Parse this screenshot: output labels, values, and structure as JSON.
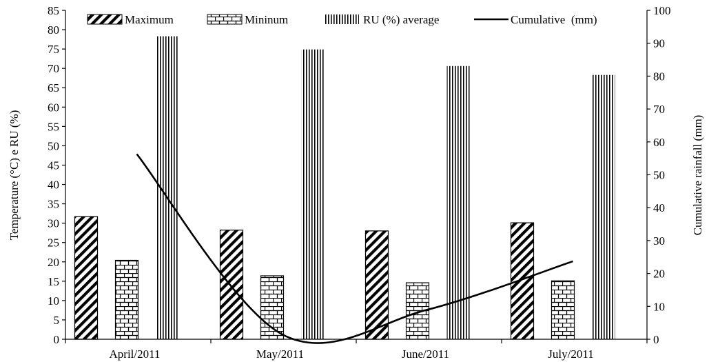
{
  "chart_data": {
    "type": "bar",
    "categories": [
      "April/2011",
      "May/2011",
      "June/2011",
      "July/2011"
    ],
    "series": [
      {
        "name": "Maximum",
        "type": "bar",
        "axis": "left",
        "pattern": "diagonal",
        "values": [
          31.7,
          28.2,
          28.0,
          30.1
        ]
      },
      {
        "name": "Mininum",
        "type": "bar",
        "axis": "left",
        "pattern": "brick",
        "values": [
          20.4,
          16.4,
          14.6,
          15.1
        ]
      },
      {
        "name": "RU (%) average",
        "type": "bar",
        "axis": "left",
        "pattern": "vertical-lines",
        "values": [
          78.3,
          74.9,
          70.6,
          68.3
        ]
      },
      {
        "name": "Cumulative  (mm)",
        "type": "line",
        "axis": "right",
        "values": [
          56.3,
          1.5,
          9.0,
          23.7
        ]
      }
    ],
    "ylabel": "Temperature (°C) e RU (%)",
    "y2label": "Cumulative  rainfall  (mm)",
    "ylim": [
      0,
      85
    ],
    "y2lim": [
      0,
      100
    ],
    "yticks": [
      "0",
      "5",
      "10",
      "15",
      "20",
      "25",
      "30",
      "35",
      "40",
      "45",
      "50",
      "55",
      "60",
      "65",
      "70",
      "75",
      "80",
      "85"
    ],
    "y2ticks": [
      "0",
      "10",
      "20",
      "30",
      "40",
      "50",
      "60",
      "70",
      "80",
      "90",
      "100"
    ],
    "legend_position": "top",
    "grid": false
  }
}
